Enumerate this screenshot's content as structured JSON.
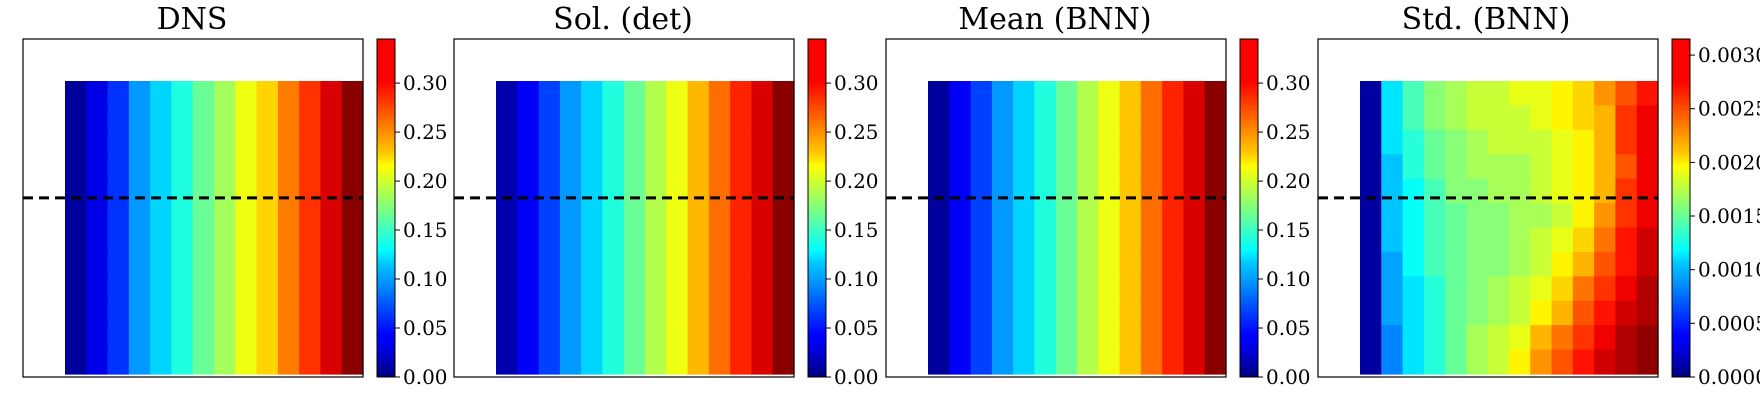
{
  "figure": {
    "colormap": "jet",
    "colormap_stops": [
      "#00007f",
      "#0000ff",
      "#007fff",
      "#00ffff",
      "#7fff7f",
      "#ffff00",
      "#ff7f00",
      "#ff0000",
      "#7f0000"
    ],
    "dashed_line_color": "#000000"
  },
  "chart_data": [
    {
      "type": "heatmap",
      "title": "DNS",
      "grid": false,
      "colorbar": {
        "range": [
          0.0,
          0.345
        ],
        "ticks": [
          0.0,
          0.05,
          0.1,
          0.15,
          0.2,
          0.25,
          0.3
        ],
        "tick_labels": [
          "0.00",
          "0.05",
          "0.10",
          "0.15",
          "0.20",
          "0.25",
          "0.30"
        ]
      },
      "dashed_line_y_fraction": 0.47,
      "columns": 14,
      "rows": 12,
      "column_values": [
        0.01,
        0.035,
        0.06,
        0.095,
        0.115,
        0.14,
        0.165,
        0.185,
        0.21,
        0.23,
        0.26,
        0.285,
        0.315,
        0.342
      ],
      "values": null
    },
    {
      "type": "heatmap",
      "title": "Sol. (det)",
      "grid": false,
      "colorbar": {
        "range": [
          0.0,
          0.345
        ],
        "ticks": [
          0.0,
          0.05,
          0.1,
          0.15,
          0.2,
          0.25,
          0.3
        ],
        "tick_labels": [
          "0.00",
          "0.05",
          "0.10",
          "0.15",
          "0.20",
          "0.25",
          "0.30"
        ]
      },
      "dashed_line_y_fraction": 0.47,
      "columns": 14,
      "rows": 12,
      "column_values": [
        0.015,
        0.04,
        0.065,
        0.095,
        0.115,
        0.14,
        0.165,
        0.19,
        0.21,
        0.24,
        0.265,
        0.29,
        0.315,
        0.342
      ],
      "values": null
    },
    {
      "type": "heatmap",
      "title": "Mean (BNN)",
      "grid": false,
      "colorbar": {
        "range": [
          0.0,
          0.345
        ],
        "ticks": [
          0.0,
          0.05,
          0.1,
          0.15,
          0.2,
          0.25,
          0.3
        ],
        "tick_labels": [
          "0.00",
          "0.05",
          "0.10",
          "0.15",
          "0.20",
          "0.25",
          "0.30"
        ]
      },
      "dashed_line_y_fraction": 0.47,
      "columns": 14,
      "rows": 12,
      "column_values": [
        0.01,
        0.04,
        0.065,
        0.095,
        0.115,
        0.14,
        0.165,
        0.19,
        0.21,
        0.235,
        0.265,
        0.29,
        0.315,
        0.342
      ],
      "values": null
    },
    {
      "type": "heatmap",
      "title": "Std. (BNN)",
      "grid": false,
      "colorbar": {
        "range": [
          0.0,
          0.00315
        ],
        "ticks": [
          0.0,
          0.0005,
          0.001,
          0.0015,
          0.002,
          0.0025,
          0.003
        ],
        "tick_labels": [
          "0.0000",
          "0.0005",
          "0.0010",
          "0.0015",
          "0.0020",
          "0.0025",
          "0.0030"
        ]
      },
      "dashed_line_y_fraction": 0.47,
      "columns": 14,
      "rows": 12,
      "column_values": null,
      "values": [
        [
          0.0001,
          0.0011,
          0.0014,
          0.0016,
          0.0017,
          0.0018,
          0.0018,
          0.0019,
          0.0019,
          0.002,
          0.0021,
          0.0023,
          0.0025,
          0.0027
        ],
        [
          0.0001,
          0.0011,
          0.0014,
          0.0016,
          0.0017,
          0.0018,
          0.0018,
          0.0018,
          0.0019,
          0.002,
          0.0021,
          0.0022,
          0.0026,
          0.0028
        ],
        [
          0.0001,
          0.0011,
          0.0013,
          0.0015,
          0.0016,
          0.0017,
          0.0018,
          0.0018,
          0.0018,
          0.0019,
          0.002,
          0.0022,
          0.0026,
          0.0028
        ],
        [
          0.0001,
          0.001,
          0.0013,
          0.0015,
          0.0016,
          0.0017,
          0.0017,
          0.0017,
          0.0018,
          0.0019,
          0.002,
          0.0022,
          0.0025,
          0.0028
        ],
        [
          0.0001,
          0.001,
          0.0012,
          0.0014,
          0.0016,
          0.0016,
          0.0017,
          0.0017,
          0.0018,
          0.0019,
          0.002,
          0.0022,
          0.0026,
          0.0028
        ],
        [
          0.0001,
          0.001,
          0.0012,
          0.0014,
          0.0015,
          0.0016,
          0.0016,
          0.0017,
          0.0017,
          0.0018,
          0.002,
          0.0023,
          0.0026,
          0.0028
        ],
        [
          0.0001,
          0.001,
          0.0012,
          0.0014,
          0.0015,
          0.0016,
          0.0016,
          0.0017,
          0.0018,
          0.0019,
          0.0021,
          0.0024,
          0.0027,
          0.0029
        ],
        [
          0.0001,
          0.0009,
          0.0012,
          0.0014,
          0.0015,
          0.0016,
          0.0016,
          0.0017,
          0.0018,
          0.002,
          0.0022,
          0.0025,
          0.0027,
          0.0029
        ],
        [
          0.0001,
          0.0009,
          0.0011,
          0.0013,
          0.0015,
          0.0016,
          0.0017,
          0.0018,
          0.0019,
          0.0021,
          0.0024,
          0.0026,
          0.0028,
          0.003
        ],
        [
          0.0001,
          0.0009,
          0.0011,
          0.0013,
          0.0015,
          0.0016,
          0.0017,
          0.0018,
          0.002,
          0.0022,
          0.0025,
          0.0027,
          0.0029,
          0.003
        ],
        [
          0.0001,
          0.0008,
          0.0011,
          0.0013,
          0.0015,
          0.0017,
          0.0018,
          0.0019,
          0.0022,
          0.0024,
          0.0026,
          0.0028,
          0.003,
          0.0031
        ],
        [
          0.0001,
          0.0008,
          0.0011,
          0.0013,
          0.0015,
          0.0017,
          0.0018,
          0.002,
          0.0023,
          0.0025,
          0.0027,
          0.0029,
          0.003,
          0.0031
        ]
      ]
    }
  ]
}
